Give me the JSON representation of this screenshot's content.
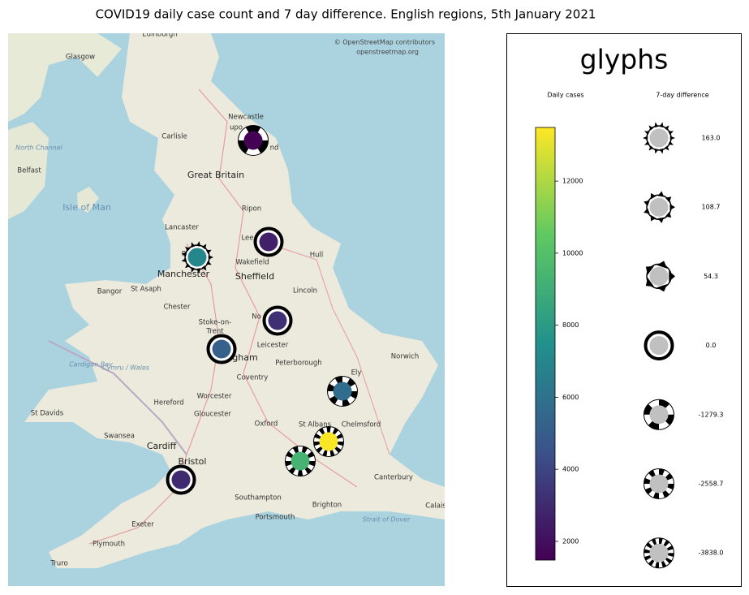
{
  "title": "COVID19 daily case count and 7 day difference. English regions, 5th January 2021",
  "map": {
    "attribution": [
      "© OpenStreetMap contributors",
      "openstreetmap.org"
    ],
    "places": [
      "Edinburgh",
      "Glasgow",
      "Newcastle",
      "upo",
      "nd",
      "Carlisle",
      "Belfast",
      "North Channel",
      "Great Britain",
      "Isle of Man",
      "Ripon",
      "Lancaster",
      "Lee",
      "Hull",
      "Wakefield",
      "Pr",
      "Manchester",
      "Sheffield",
      "Bangor",
      "St Asaph",
      "Chester",
      "Lincoln",
      "Stoke-on-",
      "Trent",
      "No",
      "Leicester",
      "Peterborough",
      "Norwich",
      "Ely",
      "Cardigan Bay",
      "Cymru / Wales",
      "gham",
      "Coventry",
      "Hereford",
      "Worcester",
      "St Davids",
      "Gloucester",
      "Oxford",
      "St Albans",
      "Chelmsford",
      "Swansea",
      "Cardiff",
      "Bristol",
      "Canterbury",
      "Southampton",
      "Brighton",
      "Portsmouth",
      "Exeter",
      "Plymouth",
      "Truro",
      "Strait of Dover",
      "Calais"
    ]
  },
  "regions": [
    {
      "cases": 1500,
      "diff": -1000
    },
    {
      "cases": 2600,
      "diff": 0
    },
    {
      "cases": 7000,
      "diff": 150
    },
    {
      "cases": 3200,
      "diff": 0
    },
    {
      "cases": 5200,
      "diff": 0
    },
    {
      "cases": 5700,
      "diff": -2000
    },
    {
      "cases": 13400,
      "diff": -3500
    },
    {
      "cases": 9300,
      "diff": -3000
    },
    {
      "cases": 3000,
      "diff": 0
    }
  ],
  "legend": {
    "title": "glyphs",
    "cases_label": "Daily cases",
    "diff_label": "7-day difference",
    "cases_lim": [
      1480,
      13490
    ],
    "cases_ticks": [
      2000,
      4000,
      6000,
      8000,
      10000,
      12000
    ],
    "diff_values": [
      {
        "value": 163,
        "label": "163.0"
      },
      108.7,
      54.3,
      {
        "value": 0,
        "label": "0.0"
      },
      -1279.3,
      -2558.7,
      {
        "value": -3838,
        "label": "-3838.0"
      }
    ],
    "neutral_color": "#c0c0c0"
  }
}
